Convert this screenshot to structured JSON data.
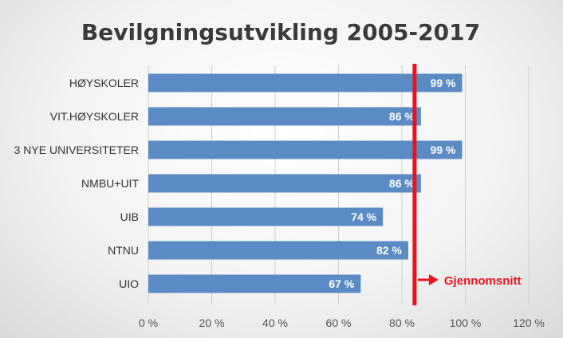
{
  "chart_data": {
    "type": "bar",
    "orientation": "horizontal",
    "title": "Bevilgningsutvikling 2005-2017",
    "categories": [
      "HØYSKOLER",
      "VIT.HØYSKOLER",
      "3 NYE UNIVERSITETER",
      "NMBU+UIT",
      "UIB",
      "NTNU",
      "UIO"
    ],
    "values": [
      99,
      86,
      99,
      86,
      74,
      82,
      67
    ],
    "value_labels": [
      "99 %",
      "86 %",
      "99 %",
      "86 %",
      "74 %",
      "82 %",
      "67 %"
    ],
    "xlim": [
      0,
      120
    ],
    "x_ticks": [
      0,
      20,
      40,
      60,
      80,
      100,
      120
    ],
    "x_tick_labels": [
      "0 %",
      "20 %",
      "40 %",
      "60 %",
      "80 %",
      "100 %",
      "120 %"
    ],
    "grid": true,
    "bar_color": "#5b8bc4",
    "reference_line": {
      "value": 84,
      "label": "Gjennomsnitt",
      "color": "#e8141d"
    }
  }
}
